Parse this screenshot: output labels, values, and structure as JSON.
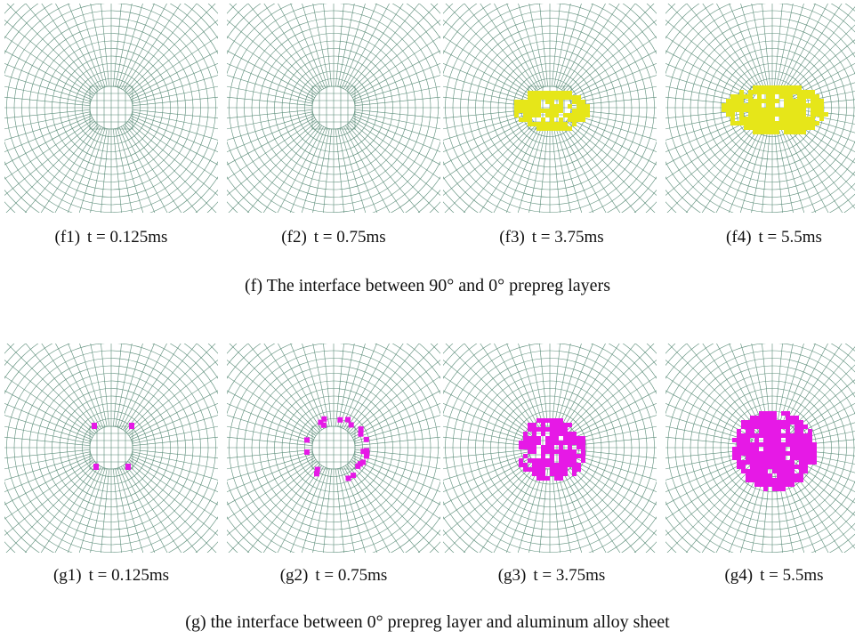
{
  "figures": [
    {
      "caption": "(f) The interface between 90° and 0° prepreg layers",
      "subfigures": [
        {
          "label": "(f1)",
          "time": "t = 0.125ms"
        },
        {
          "label": "(f2)",
          "time": "t = 0.75ms"
        },
        {
          "label": "(f3)",
          "time": "t = 3.75ms"
        },
        {
          "label": "(f4)",
          "time": "t = 5.5ms"
        }
      ]
    },
    {
      "caption": "(g) the interface between 0° prepreg layer and aluminum alloy sheet",
      "subfigures": [
        {
          "label": "(g1)",
          "time": "t = 0.125ms"
        },
        {
          "label": "(g2)",
          "time": "t = 0.75ms"
        },
        {
          "label": "(g3)",
          "time": "t = 3.75ms"
        },
        {
          "label": "(g4)",
          "time": "t = 5.5ms"
        }
      ]
    }
  ]
}
